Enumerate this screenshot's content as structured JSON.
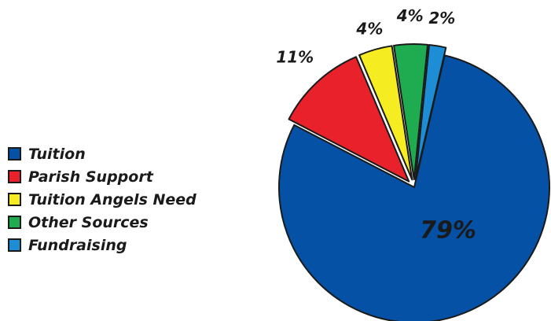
{
  "chart_data": {
    "type": "pie",
    "title": "",
    "legend_position": "left",
    "slices": [
      {
        "name": "Tuition",
        "value": 79,
        "label": "79%",
        "color": "#0551a5",
        "exploded": false
      },
      {
        "name": "Parish Support",
        "value": 11,
        "label": "11%",
        "color": "#e8212a",
        "exploded": true
      },
      {
        "name": "Tuition Angels Need",
        "value": 4,
        "label": "4%",
        "color": "#f6ec22",
        "exploded": true
      },
      {
        "name": "Other Sources",
        "value": 4,
        "label": "4%",
        "color": "#1fab4f",
        "exploded": true
      },
      {
        "name": "Fundraising",
        "value": 2,
        "label": "2%",
        "color": "#1d8ed6",
        "exploded": true
      }
    ]
  }
}
